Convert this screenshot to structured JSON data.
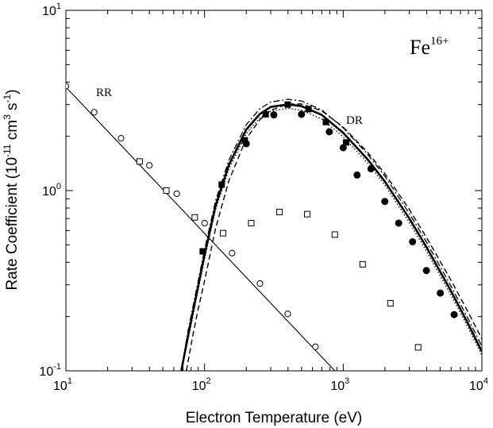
{
  "chart_data": {
    "type": "scatter",
    "xlabel": "Electron Temperature (eV)",
    "ylabel_main": "Rate Coefficient (10",
    "ylabel_exp1": "-11",
    "ylabel_mid": " cm",
    "ylabel_exp2": "3",
    "ylabel_mid2": " s",
    "ylabel_exp3": "-1",
    "ylabel_end": ")",
    "xscale": "log",
    "yscale": "log",
    "xlim": [
      10,
      10000
    ],
    "ylim": [
      0.1,
      10
    ],
    "x_ticks": [
      {
        "value": 10,
        "base": "10",
        "exp": "1"
      },
      {
        "value": 100,
        "base": "10",
        "exp": "2"
      },
      {
        "value": 1000,
        "base": "10",
        "exp": "3"
      },
      {
        "value": 10000,
        "base": "10",
        "exp": "4"
      }
    ],
    "y_ticks": [
      {
        "value": 0.1,
        "base": "10",
        "exp": "-1"
      },
      {
        "value": 1,
        "base": "10",
        "exp": "0"
      },
      {
        "value": 10,
        "base": "10",
        "exp": "1"
      }
    ],
    "annotations": {
      "ion_base": "Fe",
      "ion_charge": "16+",
      "rr_label": "RR",
      "dr_label": "DR"
    },
    "series": [
      {
        "key": "rr_open_circles",
        "marker": "open-circle",
        "x": [
          10,
          16,
          25,
          40,
          63,
          100,
          158,
          251,
          398,
          631
        ],
        "y": [
          3.8,
          2.72,
          1.95,
          1.38,
          0.96,
          0.66,
          0.45,
          0.305,
          0.207,
          0.136
        ]
      },
      {
        "key": "rr_fit_line",
        "style": "thin-solid",
        "x": [
          10,
          870
        ],
        "y": [
          3.75,
          0.1
        ]
      },
      {
        "key": "open_squares",
        "marker": "open-square",
        "x": [
          34,
          53,
          85,
          136,
          217,
          347,
          550,
          870,
          1380,
          2190,
          3470
        ],
        "y": [
          1.45,
          1.0,
          0.71,
          0.58,
          0.66,
          0.76,
          0.74,
          0.57,
          0.39,
          0.237,
          0.135
        ]
      },
      {
        "key": "dr_filled_circles",
        "marker": "filled-circle",
        "x": [
          200,
          316,
          500,
          794,
          1259,
          1995,
          3162,
          5012,
          6310,
          1000,
          1585,
          2512,
          3981
        ],
        "y": [
          1.82,
          2.63,
          2.65,
          2.12,
          1.22,
          0.87,
          0.52,
          0.27,
          0.205,
          1.73,
          1.32,
          0.66,
          0.36
        ]
      },
      {
        "key": "dr_filled_squares",
        "marker": "filled-square",
        "x": [
          97,
          133,
          195,
          276,
          398,
          562,
          750,
          1050
        ],
        "y": [
          0.46,
          1.08,
          1.9,
          2.65,
          3.0,
          2.83,
          2.4,
          1.85
        ]
      },
      {
        "key": "dr_thick_solid",
        "style": "thick-solid",
        "peak_x": 400,
        "peak_y": 3.0,
        "x": [
          68,
          75,
          85,
          100,
          120,
          150,
          200,
          250,
          300,
          400,
          500,
          700,
          1000,
          1500,
          2000,
          3000,
          4000,
          6000,
          8000,
          10000
        ],
        "y": [
          0.1,
          0.148,
          0.238,
          0.441,
          0.823,
          1.39,
          2.18,
          2.66,
          2.91,
          3.01,
          2.94,
          2.63,
          2.09,
          1.49,
          1.12,
          0.699,
          0.483,
          0.276,
          0.181,
          0.128
        ]
      },
      {
        "key": "dr_dash_dot",
        "style": "dash-dot",
        "x": [
          68,
          75,
          85,
          100,
          120,
          150,
          200,
          250,
          300,
          400,
          500,
          700,
          1000,
          1500,
          2000,
          3000,
          4000,
          6000,
          8000,
          10000
        ],
        "y": [
          0.1,
          0.158,
          0.254,
          0.47,
          0.878,
          1.48,
          2.32,
          2.84,
          3.1,
          3.21,
          3.14,
          2.8,
          2.23,
          1.59,
          1.2,
          0.746,
          0.515,
          0.294,
          0.193,
          0.137
        ]
      },
      {
        "key": "dr_dashed",
        "style": "dashed",
        "x": [
          74,
          82,
          90,
          100,
          120,
          150,
          200,
          250,
          300,
          400,
          500,
          700,
          1000,
          1500,
          2000,
          3000,
          4000,
          6000,
          8000,
          10000
        ],
        "y": [
          0.1,
          0.155,
          0.221,
          0.316,
          0.616,
          1.14,
          1.94,
          2.47,
          2.79,
          3.02,
          3.02,
          2.77,
          2.25,
          1.63,
          1.24,
          0.785,
          0.547,
          0.317,
          0.21,
          0.15
        ]
      },
      {
        "key": "dr_dotted",
        "style": "dotted",
        "x": [
          68,
          75,
          85,
          100,
          120,
          150,
          200,
          250,
          300,
          400,
          500,
          700,
          1000,
          1500,
          2000,
          3000,
          4000,
          6000,
          8000,
          10000
        ],
        "y": [
          0.1,
          0.141,
          0.226,
          0.419,
          0.782,
          1.32,
          2.07,
          2.53,
          2.76,
          2.86,
          2.79,
          2.5,
          1.99,
          1.42,
          1.07,
          0.664,
          0.459,
          0.262,
          0.172,
          0.122
        ]
      }
    ]
  }
}
